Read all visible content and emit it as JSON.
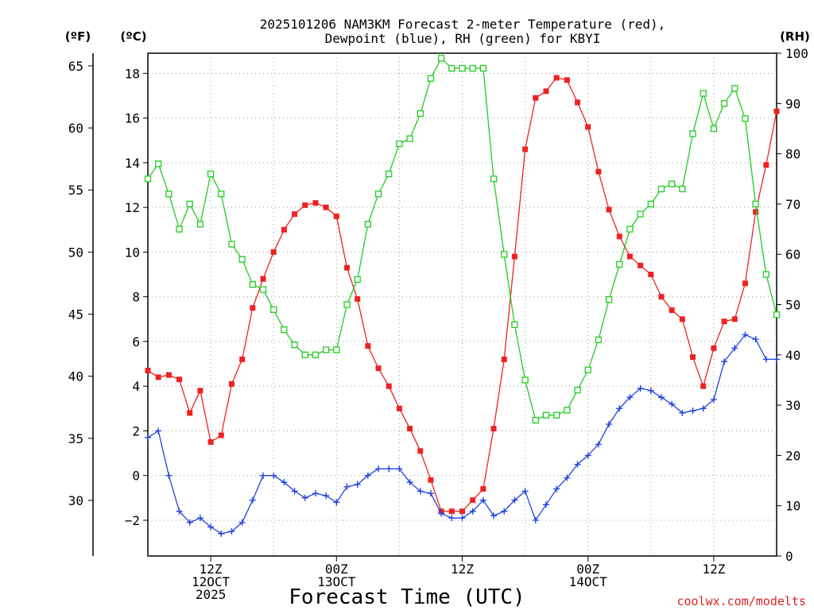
{
  "chart_data": {
    "type": "line",
    "title_line1": "2025101206 NAM3KM Forecast 2-meter Temperature (red),",
    "title_line2": "Dewpoint (blue), RH (green) for KBYI",
    "xlabel": "Forecast Time (UTC)",
    "unit_f": "(ºF)",
    "unit_c": "(ºC)",
    "unit_rh": "(RH)",
    "watermark": "coolwx.com/modelts",
    "x_hours_range": [
      0,
      60
    ],
    "c_range": [
      -3.6,
      18.9
    ],
    "rh_range": [
      0,
      100
    ],
    "c_ticks": [
      -2,
      0,
      2,
      4,
      6,
      8,
      10,
      12,
      14,
      16,
      18
    ],
    "f_ticks": [
      30,
      35,
      40,
      45,
      50,
      55,
      60,
      65
    ],
    "rh_ticks": [
      0,
      10,
      20,
      30,
      40,
      50,
      60,
      70,
      80,
      90,
      100
    ],
    "x_ticks": [
      {
        "hour": 6,
        "lines": [
          "12Z",
          "12OCT",
          "2025"
        ]
      },
      {
        "hour": 18,
        "lines": [
          "00Z",
          "13OCT"
        ]
      },
      {
        "hour": 30,
        "lines": [
          "12Z"
        ]
      },
      {
        "hour": 42,
        "lines": [
          "00Z",
          "14OCT"
        ]
      },
      {
        "hour": 54,
        "lines": [
          "12Z"
        ]
      }
    ],
    "series": [
      {
        "name": "2-meter Temperature",
        "unit": "C",
        "color": "#ee2222",
        "marker": "filled-square",
        "values": [
          4.7,
          4.4,
          4.5,
          4.3,
          2.8,
          3.8,
          1.5,
          1.8,
          4.1,
          5.2,
          7.5,
          8.8,
          10.0,
          11.0,
          11.7,
          12.1,
          12.2,
          12.0,
          11.6,
          9.3,
          7.9,
          5.8,
          4.8,
          4.0,
          3.0,
          2.1,
          1.1,
          -0.2,
          -1.6,
          -1.6,
          -1.6,
          -1.1,
          -0.6,
          2.1,
          5.2,
          9.8,
          14.6,
          16.9,
          17.2,
          17.8,
          17.7,
          16.7,
          15.6,
          13.6,
          11.9,
          10.7,
          9.8,
          9.4,
          9.0,
          8.0,
          7.4,
          7.0,
          5.3,
          4.0,
          5.7,
          6.9,
          7.0,
          8.6,
          11.8,
          13.9,
          16.3
        ]
      },
      {
        "name": "Dewpoint",
        "unit": "C",
        "color": "#2244dd",
        "marker": "plus",
        "values": [
          1.7,
          2.0,
          0.0,
          -1.6,
          -2.1,
          -1.9,
          -2.3,
          -2.6,
          -2.5,
          -2.1,
          -1.1,
          0.0,
          0.0,
          -0.3,
          -0.7,
          -1.0,
          -0.8,
          -0.9,
          -1.2,
          -0.5,
          -0.4,
          0.0,
          0.3,
          0.3,
          0.3,
          -0.3,
          -0.7,
          -0.8,
          -1.7,
          -1.9,
          -1.9,
          -1.6,
          -1.1,
          -1.8,
          -1.6,
          -1.1,
          -0.7,
          -2.0,
          -1.3,
          -0.6,
          -0.1,
          0.5,
          0.9,
          1.4,
          2.3,
          3.0,
          3.5,
          3.9,
          3.8,
          3.5,
          3.2,
          2.8,
          2.9,
          3.0,
          3.4,
          5.1,
          5.7,
          6.3,
          6.1,
          5.2,
          5.2
        ]
      },
      {
        "name": "Relative Humidity",
        "unit": "%",
        "color": "#22cc22",
        "marker": "open-square",
        "values": [
          75,
          78,
          72,
          65,
          70,
          66,
          76,
          72,
          62,
          59,
          54,
          53,
          49,
          45,
          42,
          40,
          40,
          41,
          41,
          50,
          55,
          66,
          72,
          76,
          82,
          83,
          88,
          95,
          99,
          97,
          97,
          97,
          97,
          75,
          60,
          46,
          35,
          27,
          28,
          28,
          29,
          33,
          37,
          43,
          51,
          58,
          65,
          68,
          70,
          73,
          74,
          73,
          84,
          92,
          85,
          90,
          93,
          87,
          70,
          56,
          48
        ]
      }
    ]
  }
}
